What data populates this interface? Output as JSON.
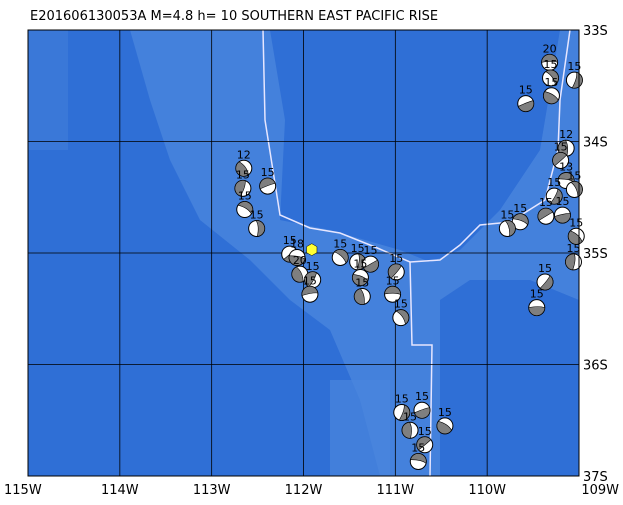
{
  "map": {
    "title": "E201606130053A M=4.8 h= 10 SOUTHERN EAST PACIFIC RISE",
    "xlim": [
      -115,
      -109
    ],
    "ylim": [
      -37,
      -33
    ],
    "xticks": [
      {
        "value": -115,
        "label": "115W"
      },
      {
        "value": -114,
        "label": "114W"
      },
      {
        "value": -113,
        "label": "113W"
      },
      {
        "value": -112,
        "label": "112W"
      },
      {
        "value": -111,
        "label": "111W"
      },
      {
        "value": -110,
        "label": "110W"
      },
      {
        "value": -109,
        "label": "109W"
      }
    ],
    "yticks": [
      {
        "value": -33,
        "label": "33S"
      },
      {
        "value": -34,
        "label": "34S"
      },
      {
        "value": -35,
        "label": "35S"
      },
      {
        "value": -36,
        "label": "36S"
      },
      {
        "value": -37,
        "label": "37S"
      }
    ],
    "epicenter": {
      "lon": -111.91,
      "lat": -34.97
    },
    "events": [
      {
        "lon": -109.32,
        "lat": -33.29,
        "depth": 20
      },
      {
        "lon": -109.31,
        "lat": -33.43,
        "depth": 15
      },
      {
        "lon": -109.05,
        "lat": -33.45,
        "depth": 15
      },
      {
        "lon": -109.58,
        "lat": -33.66,
        "depth": 15
      },
      {
        "lon": -109.3,
        "lat": -33.59,
        "depth": 15
      },
      {
        "lon": -109.14,
        "lat": -34.06,
        "depth": 12
      },
      {
        "lon": -109.2,
        "lat": -34.17,
        "depth": 15
      },
      {
        "lon": -109.14,
        "lat": -34.35,
        "depth": 13
      },
      {
        "lon": -109.05,
        "lat": -34.43,
        "depth": 15
      },
      {
        "lon": -109.27,
        "lat": -34.49,
        "depth": 15
      },
      {
        "lon": -109.18,
        "lat": -34.66,
        "depth": 15
      },
      {
        "lon": -109.03,
        "lat": -34.85,
        "depth": 15
      },
      {
        "lon": -109.06,
        "lat": -35.08,
        "depth": 15
      },
      {
        "lon": -109.36,
        "lat": -34.67,
        "depth": 15
      },
      {
        "lon": -109.64,
        "lat": -34.72,
        "depth": 15
      },
      {
        "lon": -109.78,
        "lat": -34.78,
        "depth": 15
      },
      {
        "lon": -109.37,
        "lat": -35.26,
        "depth": 15
      },
      {
        "lon": -109.46,
        "lat": -35.49,
        "depth": 15
      },
      {
        "lon": -112.65,
        "lat": -34.24,
        "depth": 12
      },
      {
        "lon": -112.66,
        "lat": -34.42,
        "depth": 15
      },
      {
        "lon": -112.39,
        "lat": -34.4,
        "depth": 15
      },
      {
        "lon": -112.64,
        "lat": -34.61,
        "depth": 15
      },
      {
        "lon": -112.51,
        "lat": -34.78,
        "depth": 15
      },
      {
        "lon": -112.15,
        "lat": -35.01,
        "depth": 15
      },
      {
        "lon": -112.07,
        "lat": -35.04,
        "depth": 18
      },
      {
        "lon": -112.04,
        "lat": -35.19,
        "depth": 20
      },
      {
        "lon": -111.9,
        "lat": -35.24,
        "depth": 15
      },
      {
        "lon": -111.93,
        "lat": -35.37,
        "depth": 15
      },
      {
        "lon": -111.6,
        "lat": -35.04,
        "depth": 15
      },
      {
        "lon": -111.41,
        "lat": -35.08,
        "depth": 15
      },
      {
        "lon": -111.27,
        "lat": -35.1,
        "depth": 15
      },
      {
        "lon": -111.38,
        "lat": -35.22,
        "depth": 15
      },
      {
        "lon": -111.36,
        "lat": -35.39,
        "depth": 15
      },
      {
        "lon": -110.99,
        "lat": -35.17,
        "depth": 15
      },
      {
        "lon": -111.03,
        "lat": -35.37,
        "depth": 15
      },
      {
        "lon": -110.94,
        "lat": -35.58,
        "depth": 15
      },
      {
        "lon": -110.93,
        "lat": -36.43,
        "depth": 15
      },
      {
        "lon": -110.71,
        "lat": -36.41,
        "depth": 15
      },
      {
        "lon": -110.46,
        "lat": -36.55,
        "depth": 15
      },
      {
        "lon": -110.84,
        "lat": -36.59,
        "depth": 15
      },
      {
        "lon": -110.68,
        "lat": -36.72,
        "depth": 15
      },
      {
        "lon": -110.75,
        "lat": -36.87,
        "depth": 15
      }
    ]
  }
}
